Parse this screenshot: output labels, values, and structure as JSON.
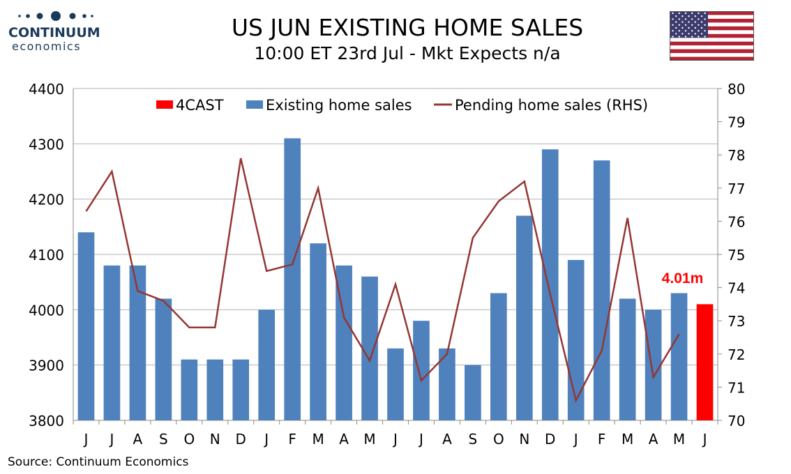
{
  "brand": {
    "name": "CONTINUUM",
    "tagline": "economics",
    "icon": "dotted-logo-icon"
  },
  "header": {
    "title": "US JUN EXISTING HOME SALES",
    "subtitle": "10:00 ET 23rd Jul - Mkt Expects n/a",
    "flag_icon": "us-flag-icon"
  },
  "footer": {
    "source": "Source: Continuum Economics"
  },
  "colors": {
    "bars": "#4f81bd",
    "forecast": "#ff0000",
    "line": "#943634",
    "annotation": "#ff0000",
    "grid": "#b3b3b3"
  },
  "chart_data": {
    "type": "bar",
    "categories": [
      "J",
      "J",
      "A",
      "S",
      "O",
      "N",
      "D",
      "J",
      "F",
      "M",
      "A",
      "M",
      "J",
      "J",
      "A",
      "S",
      "O",
      "N",
      "D",
      "J",
      "F",
      "M",
      "A",
      "M",
      "J"
    ],
    "series": [
      {
        "name": "Existing home sales",
        "type": "bar",
        "axis": "left",
        "values": [
          4140,
          4080,
          4080,
          4020,
          3910,
          3910,
          3910,
          4000,
          4310,
          4120,
          4080,
          4060,
          3930,
          3980,
          3930,
          3900,
          4030,
          4170,
          4290,
          4090,
          4270,
          4020,
          4000,
          4030,
          null
        ]
      },
      {
        "name": "4CAST",
        "type": "bar",
        "axis": "left",
        "values": [
          null,
          null,
          null,
          null,
          null,
          null,
          null,
          null,
          null,
          null,
          null,
          null,
          null,
          null,
          null,
          null,
          null,
          null,
          null,
          null,
          null,
          null,
          null,
          null,
          4010
        ]
      },
      {
        "name": "Pending home sales (RHS)",
        "type": "line",
        "axis": "right",
        "values": [
          76.3,
          77.5,
          73.9,
          73.6,
          72.8,
          72.8,
          77.9,
          74.5,
          74.7,
          77.0,
          73.1,
          71.8,
          74.1,
          71.2,
          72.0,
          75.5,
          76.6,
          77.2,
          73.8,
          70.6,
          72.1,
          76.1,
          71.3,
          72.6,
          null
        ]
      }
    ],
    "legend": [
      "4CAST",
      "Existing home sales",
      "Pending home sales (RHS)"
    ],
    "legend_position": "top",
    "ylim_left": [
      3800,
      4400
    ],
    "yticks_left": [
      "3800",
      "3900",
      "4000",
      "4100",
      "4200",
      "4300",
      "4400"
    ],
    "ylim_right": [
      70,
      80
    ],
    "yticks_right": [
      "70",
      "71",
      "72",
      "73",
      "74",
      "75",
      "76",
      "77",
      "78",
      "79",
      "80"
    ],
    "annotation": {
      "text": "4.01m",
      "category_index": 24
    },
    "grid": true
  }
}
